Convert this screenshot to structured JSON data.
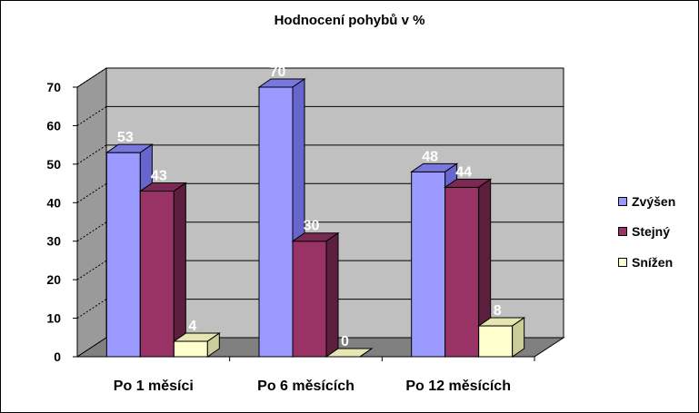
{
  "chart_data": {
    "type": "bar",
    "title": "Hodnocení pohybů v %",
    "categories": [
      "Po 1 měsíci",
      "Po 6 měsících",
      "Po 12 měsících"
    ],
    "series": [
      {
        "name": "Zvýšen",
        "values": [
          53,
          70,
          48
        ],
        "value_labels": [
          "53",
          "70",
          "48"
        ],
        "color": "#9999ff",
        "side": "#6666cc",
        "top": "#7777dd"
      },
      {
        "name": "Stejný",
        "values": [
          43,
          30,
          44
        ],
        "value_labels": [
          "43",
          "30",
          "44"
        ],
        "color": "#993366",
        "side": "#5c1f3d",
        "top": "#7a2952"
      },
      {
        "name": "Snížen",
        "values": [
          4,
          0,
          8
        ],
        "value_labels": [
          "4",
          "0",
          "8"
        ],
        "color": "#ffffcc",
        "side": "#cccc99",
        "top": "#e6e6b3"
      }
    ],
    "yticks": [
      0,
      10,
      20,
      30,
      40,
      50,
      60,
      70
    ],
    "ylim": [
      0,
      70
    ],
    "grid": true,
    "legend_position": "right",
    "colors": {
      "wall": "#c0c0c0",
      "side_wall": "#9a9a9a",
      "floor": "#808080",
      "grid": "#000000",
      "value_label": "#ffffff"
    }
  }
}
